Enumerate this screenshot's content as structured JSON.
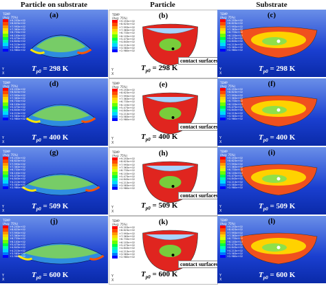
{
  "headers": {
    "col1": "Particle on substrate",
    "col2": "Particle",
    "col3": "Substrate"
  },
  "legend_title_1": "TEMP",
  "legend_title_2": "(Avg: 75%)",
  "legend_values": [
    "+9.253e+02",
    "+8.623e+02",
    "+7.993e+02",
    "+7.363e+02",
    "+6.733e+02",
    "+6.103e+02",
    "+5.473e+02",
    "+4.843e+02",
    "+4.213e+02",
    "+3.583e+02",
    "+2.980e+02"
  ],
  "legend_colors": [
    "#ff0000",
    "#ff4a00",
    "#ff9500",
    "#ffd400",
    "#d8ff00",
    "#6cff00",
    "#00ff44",
    "#00ffb0",
    "#00d8ff",
    "#0077ff",
    "#0000ff"
  ],
  "callout": "contact surfaces",
  "rows": [
    {
      "letters": [
        "(a)",
        "(b)",
        "(c)"
      ],
      "temp": "298 K"
    },
    {
      "letters": [
        "(d)",
        "(e)",
        "(f)"
      ],
      "temp": "400 K"
    },
    {
      "letters": [
        "(g)",
        "(h)",
        "(i)"
      ],
      "temp": "509 K"
    },
    {
      "letters": [
        "(j)",
        "(k)",
        "(l)"
      ],
      "temp": "600 K"
    }
  ],
  "tsymbol": "T",
  "tsub": "p0",
  "teq": " = ",
  "axis_y": "Y",
  "axis_x": "X"
}
